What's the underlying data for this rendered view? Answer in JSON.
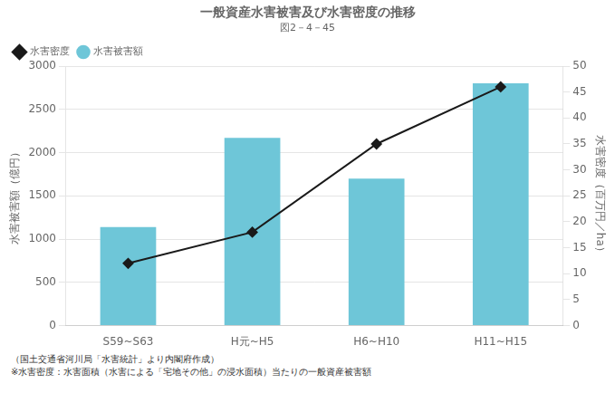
{
  "chart_data": {
    "type": "bar",
    "title": "一般資産水害被害及び水害密度の推移",
    "subtitle": "図2－4－45",
    "categories": [
      "S59~S63",
      "H元~H5",
      "H6~H10",
      "H11~H15"
    ],
    "series": [
      {
        "name": "水害被害額",
        "type": "bar",
        "color": "#6EC6D8",
        "values": [
          1140,
          2170,
          1700,
          2800
        ]
      },
      {
        "name": "水害密度",
        "type": "line",
        "axis": "y2",
        "color": "#1a1a1a",
        "marker": "diamond",
        "values": [
          12,
          18,
          35,
          46
        ]
      }
    ],
    "ylabel": "水害被害額（億円）",
    "y2label": "水害密度（百万円／ha）",
    "ylim": [
      0,
      3000
    ],
    "yticks": [
      0,
      500,
      1000,
      1500,
      2000,
      2500,
      3000
    ],
    "y2lim": [
      0,
      50
    ],
    "y2ticks": [
      0,
      5,
      10,
      15,
      20,
      25,
      30,
      35,
      40,
      45,
      50
    ],
    "grid": true,
    "legend": "upper left",
    "annotations": [
      "（国土交通省河川局「水害統計」より内閣府作成）",
      "※水害密度：水害面積（水害による「宅地その他」の浸水面積）当たりの一般資産被害額"
    ]
  }
}
